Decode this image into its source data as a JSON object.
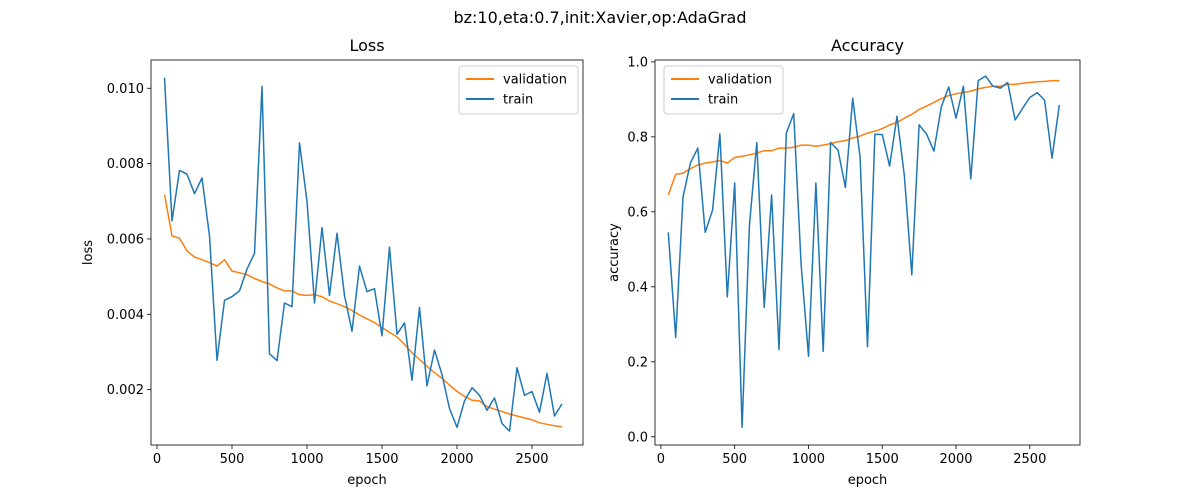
{
  "figure_title": "bz:10,eta:0.7,init:Xavier,op:AdaGrad",
  "colors": {
    "validation": "#ff7f0e",
    "train": "#1f77b4"
  },
  "chart_data": [
    {
      "type": "line",
      "title": "Loss",
      "xlabel": "epoch",
      "ylabel": "loss",
      "xlim": [
        -40,
        2840
      ],
      "ylim": [
        0.00053,
        0.01075
      ],
      "xticks": [
        0,
        500,
        1000,
        1500,
        2000,
        2500
      ],
      "xtick_labels": [
        "0",
        "500",
        "1000",
        "1500",
        "2000",
        "2500"
      ],
      "yticks": [
        0.002,
        0.004,
        0.006,
        0.008,
        0.01
      ],
      "ytick_labels": [
        "0.002",
        "0.004",
        "0.006",
        "0.008",
        "0.010"
      ],
      "legend": "upper right",
      "x": [
        50,
        100,
        150,
        200,
        250,
        300,
        350,
        400,
        450,
        500,
        550,
        600,
        650,
        700,
        750,
        800,
        850,
        900,
        950,
        1000,
        1050,
        1100,
        1150,
        1200,
        1250,
        1300,
        1350,
        1400,
        1450,
        1500,
        1550,
        1600,
        1650,
        1700,
        1750,
        1800,
        1850,
        1900,
        1950,
        2000,
        2050,
        2100,
        2150,
        2200,
        2250,
        2300,
        2350,
        2400,
        2450,
        2500,
        2550,
        2600,
        2650,
        2700
      ],
      "series": [
        {
          "name": "validation",
          "values": [
            0.00718,
            0.00608,
            0.00602,
            0.00568,
            0.00552,
            0.00545,
            0.00537,
            0.00528,
            0.00545,
            0.00515,
            0.0051,
            0.00505,
            0.00495,
            0.00487,
            0.0048,
            0.0047,
            0.00462,
            0.00462,
            0.00452,
            0.0045,
            0.00452,
            0.00447,
            0.00435,
            0.00428,
            0.0042,
            0.0041,
            0.00398,
            0.00388,
            0.00378,
            0.00365,
            0.00352,
            0.0034,
            0.0032,
            0.00298,
            0.0028,
            0.00262,
            0.00245,
            0.0023,
            0.00212,
            0.00195,
            0.00182,
            0.00172,
            0.0017,
            0.00155,
            0.00148,
            0.00142,
            0.00135,
            0.0013,
            0.00125,
            0.0012,
            0.00112,
            0.00108,
            0.00104,
            0.00101
          ]
        },
        {
          "name": "train",
          "values": [
            0.01028,
            0.00648,
            0.00782,
            0.00772,
            0.0072,
            0.00762,
            0.00608,
            0.00278,
            0.00437,
            0.00447,
            0.00462,
            0.0052,
            0.00562,
            0.01005,
            0.00295,
            0.00277,
            0.0043,
            0.0042,
            0.00855,
            0.007,
            0.0043,
            0.0063,
            0.0045,
            0.00615,
            0.0045,
            0.00355,
            0.00528,
            0.0046,
            0.00468,
            0.00343,
            0.00578,
            0.00347,
            0.00377,
            0.00225,
            0.00418,
            0.0021,
            0.00305,
            0.0024,
            0.0015,
            0.001,
            0.0017,
            0.00205,
            0.00185,
            0.00145,
            0.00178,
            0.0011,
            0.0009,
            0.00258,
            0.00185,
            0.00195,
            0.0014,
            0.00243,
            0.0013,
            0.00162
          ]
        }
      ]
    },
    {
      "type": "line",
      "title": "Accuracy",
      "xlabel": "epoch",
      "ylabel": "accuracy",
      "xlim": [
        -40,
        2840
      ],
      "ylim": [
        -0.022,
        1.005
      ],
      "xticks": [
        0,
        500,
        1000,
        1500,
        2000,
        2500
      ],
      "xtick_labels": [
        "0",
        "500",
        "1000",
        "1500",
        "2000",
        "2500"
      ],
      "yticks": [
        0.0,
        0.2,
        0.4,
        0.6,
        0.8,
        1.0
      ],
      "ytick_labels": [
        "0.0",
        "0.2",
        "0.4",
        "0.6",
        "0.8",
        "1.0"
      ],
      "legend": "upper left",
      "x": [
        50,
        100,
        150,
        200,
        250,
        300,
        350,
        400,
        450,
        500,
        550,
        600,
        650,
        700,
        750,
        800,
        850,
        900,
        950,
        1000,
        1050,
        1100,
        1150,
        1200,
        1250,
        1300,
        1350,
        1400,
        1450,
        1500,
        1550,
        1600,
        1650,
        1700,
        1750,
        1800,
        1850,
        1900,
        1950,
        2000,
        2050,
        2100,
        2150,
        2200,
        2250,
        2300,
        2350,
        2400,
        2450,
        2500,
        2550,
        2600,
        2650,
        2700
      ],
      "series": [
        {
          "name": "validation",
          "values": [
            0.645,
            0.7,
            0.703,
            0.715,
            0.725,
            0.73,
            0.733,
            0.737,
            0.73,
            0.745,
            0.748,
            0.752,
            0.757,
            0.763,
            0.763,
            0.77,
            0.77,
            0.772,
            0.778,
            0.778,
            0.775,
            0.778,
            0.782,
            0.787,
            0.79,
            0.797,
            0.802,
            0.81,
            0.815,
            0.822,
            0.832,
            0.838,
            0.85,
            0.86,
            0.873,
            0.882,
            0.892,
            0.902,
            0.91,
            0.915,
            0.918,
            0.922,
            0.928,
            0.932,
            0.935,
            0.935,
            0.94,
            0.94,
            0.943,
            0.945,
            0.947,
            0.948,
            0.95,
            0.95
          ]
        },
        {
          "name": "train",
          "values": [
            0.545,
            0.265,
            0.64,
            0.73,
            0.77,
            0.545,
            0.605,
            0.808,
            0.373,
            0.677,
            0.025,
            0.563,
            0.785,
            0.345,
            0.645,
            0.233,
            0.81,
            0.862,
            0.46,
            0.215,
            0.677,
            0.228,
            0.785,
            0.765,
            0.665,
            0.903,
            0.745,
            0.24,
            0.807,
            0.806,
            0.722,
            0.855,
            0.695,
            0.432,
            0.832,
            0.808,
            0.762,
            0.88,
            0.933,
            0.85,
            0.935,
            0.688,
            0.95,
            0.962,
            0.935,
            0.93,
            0.945,
            0.845,
            0.875,
            0.905,
            0.918,
            0.898,
            0.743,
            0.885
          ]
        }
      ]
    }
  ]
}
